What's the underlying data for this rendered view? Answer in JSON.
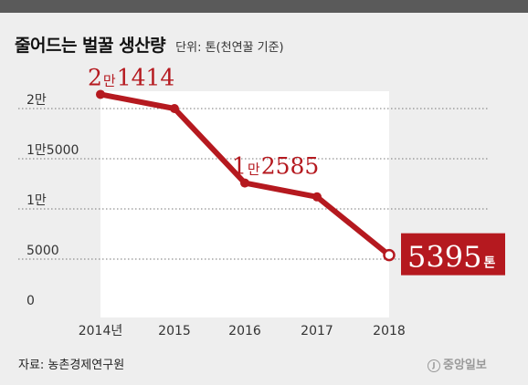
{
  "header": {
    "title": "줄어드는 벌꿀 생산량",
    "unit": "단위: 톤(천연꿀 기준)"
  },
  "footer": {
    "source": "자료: 농촌경제연구원",
    "logo": "중앙일보",
    "logo_mark": "J"
  },
  "chart_data": {
    "type": "line",
    "title": "줄어드는 벌꿀 생산량",
    "subtitle": "단위: 톤(천연꿀 기준)",
    "x_ticks": [
      "2014년",
      "2015",
      "2016",
      "2017",
      "2018"
    ],
    "x": [
      2014,
      2015,
      2016,
      2017,
      2018
    ],
    "y_ticks": [
      {
        "value": 0,
        "label": "0"
      },
      {
        "value": 5000,
        "label": "5000"
      },
      {
        "value": 10000,
        "label": "1만"
      },
      {
        "value": 15000,
        "label": "1만5000"
      },
      {
        "value": 20000,
        "label": "2만"
      }
    ],
    "series": [
      {
        "values": [
          21414,
          20000,
          12585,
          11200,
          5395
        ]
      }
    ],
    "annotations": [
      {
        "index": 0,
        "parts": [
          "2",
          "만",
          "1414"
        ]
      },
      {
        "index": 2,
        "parts": [
          "1",
          "만",
          "2585"
        ]
      },
      {
        "index": 4,
        "parts": [
          "5395",
          "톤"
        ]
      }
    ],
    "ylim": [
      0,
      21414
    ],
    "grid": true,
    "colors": {
      "line": "#b5191f",
      "highlight_box": "#b5191f",
      "plot_bg": "#ffffff",
      "page_bg": "#eeeeee"
    }
  }
}
